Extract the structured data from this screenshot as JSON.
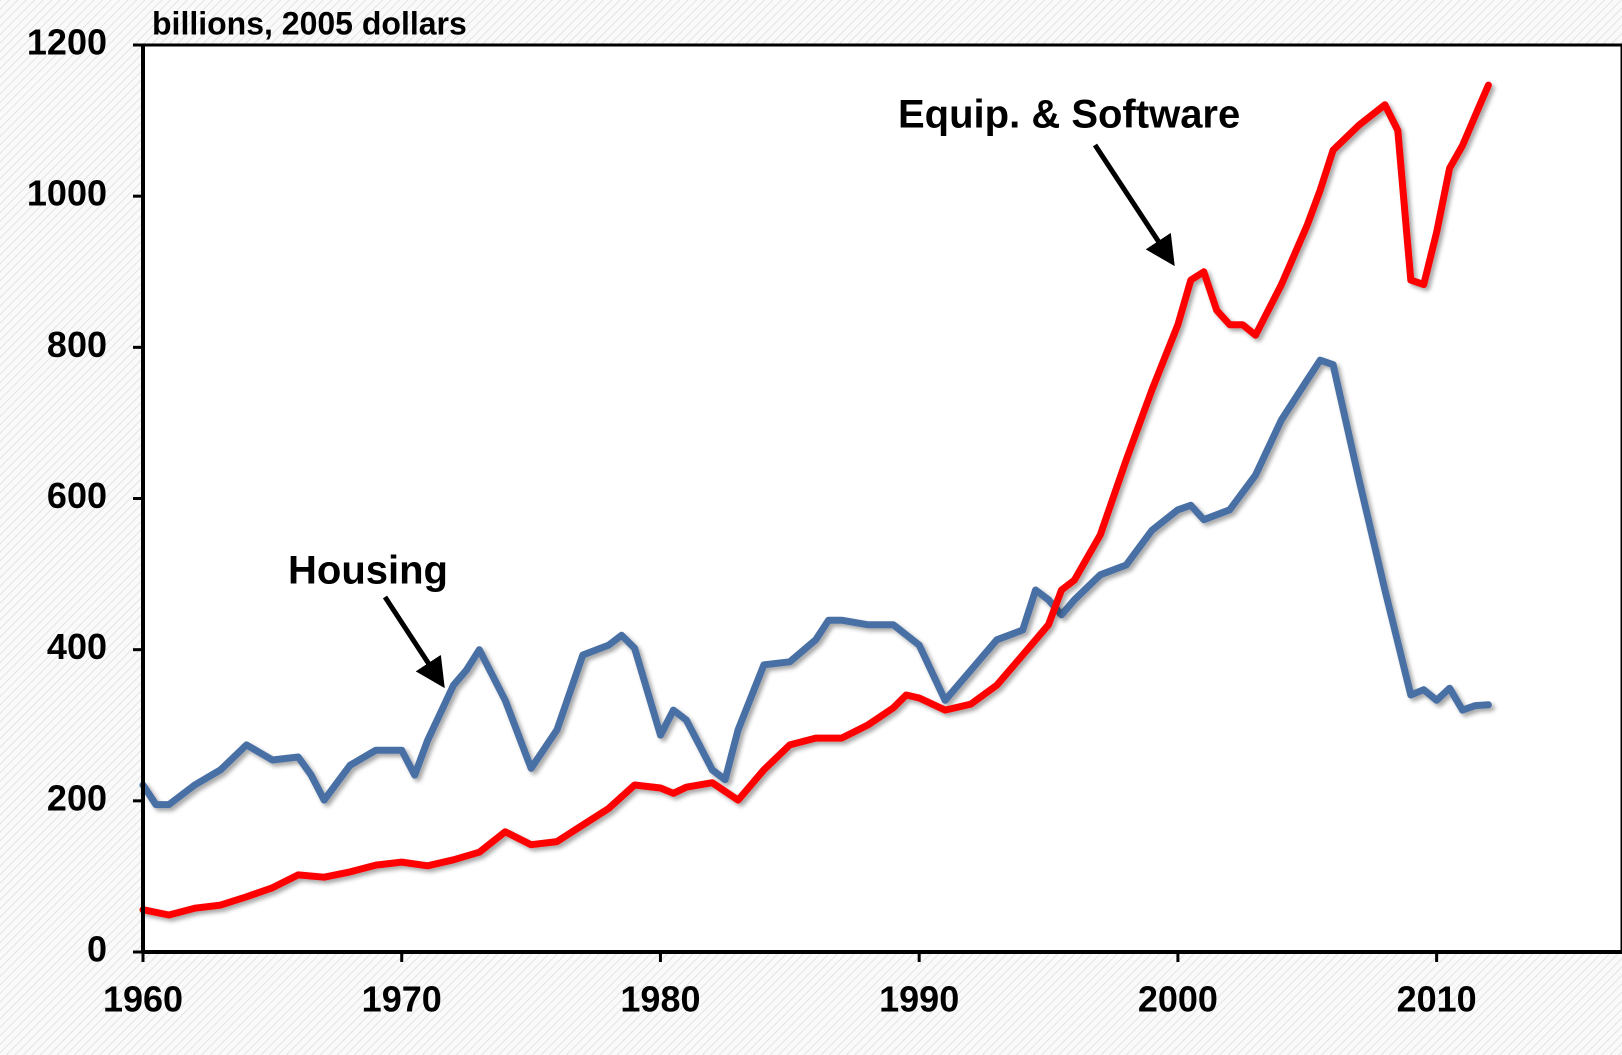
{
  "chart_data": {
    "type": "line",
    "ylabel": "billions, 2005 dollars",
    "xlim": [
      1960,
      2015
    ],
    "xticks": [
      1960,
      1970,
      1980,
      1990,
      2000,
      2010
    ],
    "ylim": [
      0,
      1200
    ],
    "yticks": [
      0,
      200,
      400,
      600,
      800,
      1000,
      1200
    ],
    "series": [
      {
        "name": "Housing",
        "color": "#4a6fa5",
        "x": [
          1960,
          1960.5,
          1961,
          1962,
          1963,
          1964,
          1965,
          1966,
          1966.5,
          1967,
          1968,
          1969,
          1970,
          1970.5,
          1971,
          1972,
          1972.5,
          1973,
          1974,
          1975,
          1976,
          1977,
          1978,
          1978.5,
          1979,
          1980,
          1980.5,
          1981,
          1981.5,
          1982,
          1982.5,
          1983,
          1984,
          1985,
          1986,
          1986.5,
          1987,
          1988,
          1989,
          1990,
          1991,
          1992,
          1993,
          1994,
          1994.5,
          1995,
          1995.5,
          1996,
          1997,
          1998,
          1999,
          2000,
          2000.5,
          2001,
          2002,
          2003,
          2004,
          2005,
          2005.5,
          2006,
          2007,
          2008,
          2009,
          2009.5,
          2010,
          2010.5,
          2011,
          2011.5,
          2012
        ],
        "values": [
          221,
          195,
          195,
          221,
          241,
          274,
          254,
          258,
          234,
          201,
          247,
          267,
          267,
          234,
          280,
          353,
          373,
          400,
          333,
          243,
          294,
          393,
          406,
          419,
          402,
          287,
          320,
          307,
          274,
          241,
          228,
          294,
          380,
          384,
          413,
          439,
          439,
          433,
          433,
          406,
          333,
          373,
          413,
          426,
          479,
          466,
          446,
          466,
          499,
          512,
          558,
          585,
          591,
          572,
          585,
          631,
          704,
          757,
          783,
          777,
          625,
          479,
          340,
          347,
          333,
          349,
          320,
          326,
          327
        ]
      },
      {
        "name": "Equip. & Software",
        "color": "#ff0000",
        "x": [
          1960,
          1961,
          1962,
          1963,
          1964,
          1965,
          1966,
          1967,
          1968,
          1969,
          1970,
          1971,
          1972,
          1973,
          1974,
          1975,
          1976,
          1977,
          1978,
          1979,
          1980,
          1980.5,
          1981,
          1982,
          1983,
          1984,
          1985,
          1986,
          1987,
          1988,
          1989,
          1989.5,
          1990,
          1991,
          1992,
          1993,
          1994,
          1995,
          1995.5,
          1996,
          1997,
          1998,
          1999,
          2000,
          2000.5,
          2001,
          2001.5,
          2002,
          2002.5,
          2003,
          2004,
          2005,
          2005.5,
          2006,
          2007,
          2008,
          2008.5,
          2009,
          2009.5,
          2010,
          2010.5,
          2011,
          2011.5,
          2012
        ],
        "values": [
          56,
          49,
          58,
          62,
          73,
          85,
          102,
          99,
          106,
          115,
          119,
          114,
          122,
          132,
          159,
          142,
          146,
          168,
          190,
          221,
          217,
          210,
          218,
          224,
          201,
          241,
          274,
          283,
          283,
          300,
          323,
          340,
          336,
          320,
          328,
          353,
          393,
          433,
          479,
          492,
          552,
          651,
          744,
          830,
          889,
          900,
          849,
          830,
          830,
          816,
          883,
          962,
          1008,
          1061,
          1094,
          1121,
          1087,
          889,
          883,
          952,
          1037,
          1067,
          1107,
          1147
        ]
      }
    ]
  }
}
